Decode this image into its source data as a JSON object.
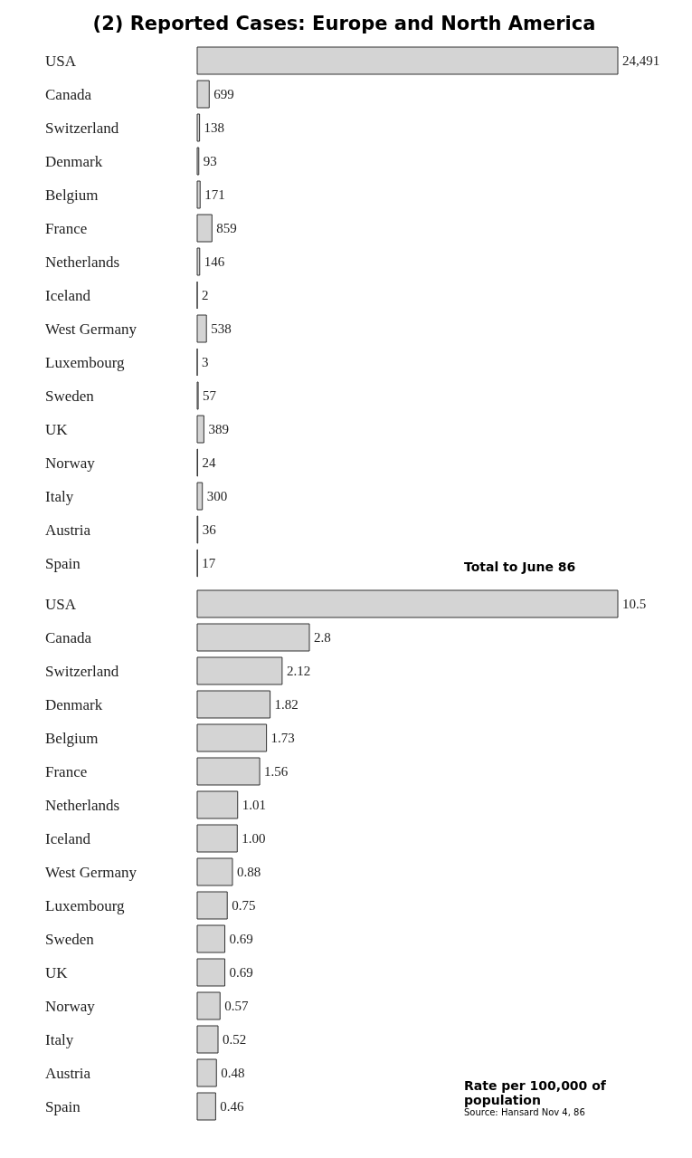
{
  "chart_data": [
    {
      "type": "bar",
      "orientation": "horizontal",
      "title": "(2) Reported Cases: Europe and North America",
      "categories": [
        "USA",
        "Canada",
        "Switzerland",
        "Denmark",
        "Belgium",
        "France",
        "Netherlands",
        "Iceland",
        "West Germany",
        "Luxembourg",
        "Sweden",
        "UK",
        "Norway",
        "Italy",
        "Austria",
        "Spain"
      ],
      "color": "#d4d4d4",
      "values": [
        24491,
        699,
        138,
        93,
        171,
        859,
        146,
        2,
        538,
        3,
        57,
        389,
        24,
        300,
        36,
        17
      ],
      "value_labels": [
        "24,491",
        "699",
        "138",
        "93",
        "171",
        "859",
        "146",
        "2",
        "538",
        "3",
        "57",
        "389",
        "24",
        "300",
        "36",
        "17"
      ],
      "annotations": [
        "Total to June 86"
      ]
    },
    {
      "type": "bar",
      "orientation": "horizontal",
      "categories": [
        "USA",
        "Canada",
        "Switzerland",
        "Denmark",
        "Belgium",
        "France",
        "Netherlands",
        "Iceland",
        "West Germany",
        "Luxembourg",
        "Sweden",
        "UK",
        "Norway",
        "Italy",
        "Austria",
        "Spain"
      ],
      "color": "#d4d4d4",
      "values": [
        10.5,
        2.8,
        2.12,
        1.82,
        1.73,
        1.56,
        1.01,
        1.0,
        0.88,
        0.75,
        0.69,
        0.69,
        0.57,
        0.52,
        0.48,
        0.46
      ],
      "value_labels": [
        "10.5",
        "2.8",
        "2.12",
        "1.82",
        "1.73",
        "1.56",
        "1.01",
        "1.00",
        "0.88",
        "0.75",
        "0.69",
        "0.69",
        "0.57",
        "0.52",
        "0.48",
        "0.46"
      ],
      "annotations": [
        "Rate per 100,000 of population",
        "Source: Hansard Nov 4, 86"
      ]
    }
  ]
}
